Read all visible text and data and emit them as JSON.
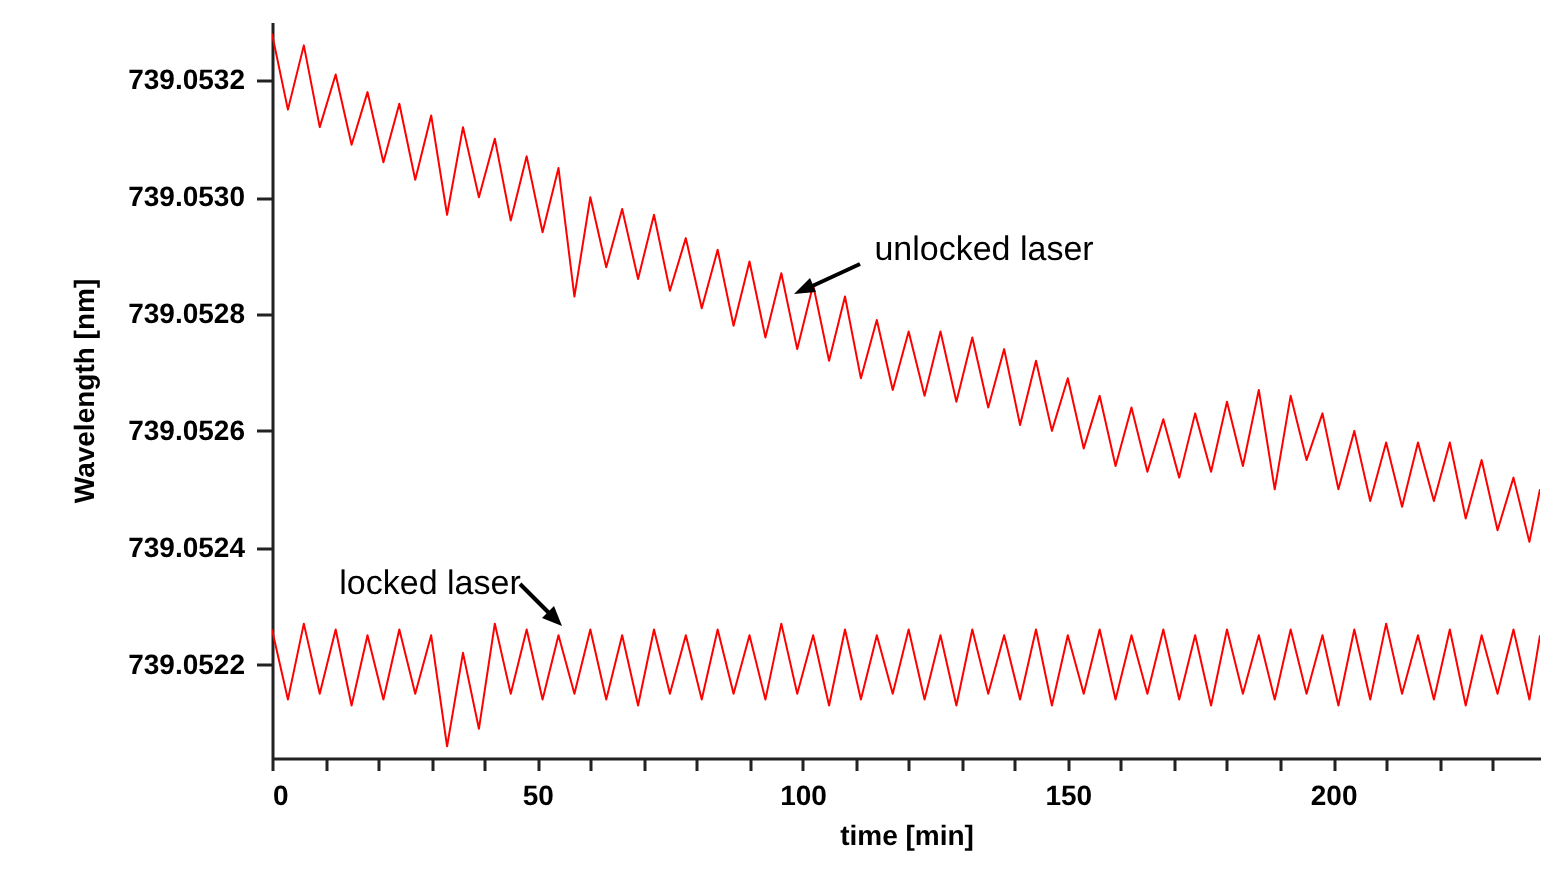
{
  "chart_data": {
    "type": "line",
    "xlabel": "time [min]",
    "ylabel": "Wavelength [nm]",
    "xlim": [
      0,
      239
    ],
    "ylim": [
      739.05204,
      739.0533
    ],
    "xticks": [
      0,
      {
        "value": 10,
        "label": null
      },
      {
        "value": 20,
        "label": null
      },
      {
        "value": 30,
        "label": null
      },
      {
        "value": 40,
        "label": null
      },
      50,
      {
        "value": 60,
        "label": null
      },
      {
        "value": 70,
        "label": null
      },
      {
        "value": 80,
        "label": null
      },
      {
        "value": 90,
        "label": null
      },
      100,
      {
        "value": 110,
        "label": null
      },
      {
        "value": 120,
        "label": null
      },
      {
        "value": 130,
        "label": null
      },
      {
        "value": 140,
        "label": null
      },
      150,
      {
        "value": 160,
        "label": null
      },
      {
        "value": 170,
        "label": null
      },
      {
        "value": 180,
        "label": null
      },
      {
        "value": 190,
        "label": null
      },
      200,
      {
        "value": 210,
        "label": null
      },
      {
        "value": 220,
        "label": null
      },
      {
        "value": 230,
        "label": null
      }
    ],
    "yticks": [
      {
        "value": 739.0522,
        "label": "739.0522"
      },
      {
        "value": 739.0524,
        "label": "739.0524"
      },
      {
        "value": 739.0526,
        "label": "739.0526"
      },
      {
        "value": 739.0528,
        "label": "739.0528"
      },
      {
        "value": 739.053,
        "label": "739.0530"
      },
      {
        "value": 739.0532,
        "label": "739.0532"
      }
    ],
    "x": [
      0,
      3,
      6,
      9,
      12,
      15,
      18,
      21,
      24,
      27,
      30,
      33,
      36,
      39,
      42,
      45,
      48,
      51,
      54,
      57,
      60,
      63,
      66,
      69,
      72,
      75,
      78,
      81,
      84,
      87,
      90,
      93,
      96,
      99,
      102,
      105,
      108,
      111,
      114,
      117,
      120,
      123,
      126,
      129,
      132,
      135,
      138,
      141,
      144,
      147,
      150,
      153,
      156,
      159,
      162,
      165,
      168,
      171,
      174,
      177,
      180,
      183,
      186,
      189,
      192,
      195,
      198,
      201,
      204,
      207,
      210,
      213,
      216,
      219,
      222,
      225,
      228,
      231,
      234,
      237,
      239
    ],
    "series": [
      {
        "name": "unlocked laser",
        "color": "#ff0000",
        "values": [
          739.05328,
          739.05315,
          739.05326,
          739.05312,
          739.05321,
          739.05309,
          739.05318,
          739.05306,
          739.05316,
          739.05303,
          739.05314,
          739.05297,
          739.05312,
          739.053,
          739.0531,
          739.05296,
          739.05307,
          739.05294,
          739.05305,
          739.05283,
          739.053,
          739.05288,
          739.05298,
          739.05286,
          739.05297,
          739.05284,
          739.05293,
          739.05281,
          739.05291,
          739.05278,
          739.05289,
          739.05276,
          739.05287,
          739.05274,
          739.05285,
          739.05272,
          739.05283,
          739.05269,
          739.05279,
          739.05267,
          739.05277,
          739.05266,
          739.05277,
          739.05265,
          739.05276,
          739.05264,
          739.05274,
          739.05261,
          739.05272,
          739.0526,
          739.05269,
          739.05257,
          739.05266,
          739.05254,
          739.05264,
          739.05253,
          739.05262,
          739.05252,
          739.05263,
          739.05253,
          739.05265,
          739.05254,
          739.05267,
          739.0525,
          739.05266,
          739.05255,
          739.05263,
          739.0525,
          739.0526,
          739.05248,
          739.05258,
          739.05247,
          739.05258,
          739.05248,
          739.05258,
          739.05245,
          739.05255,
          739.05243,
          739.05252,
          739.05241,
          739.0525
        ]
      },
      {
        "name": "locked laser",
        "color": "#ff0000",
        "values": [
          739.05226,
          739.05214,
          739.05227,
          739.05215,
          739.05226,
          739.05213,
          739.05225,
          739.05214,
          739.05226,
          739.05215,
          739.05225,
          739.05206,
          739.05222,
          739.05209,
          739.05227,
          739.05215,
          739.05226,
          739.05214,
          739.05225,
          739.05215,
          739.05226,
          739.05214,
          739.05225,
          739.05213,
          739.05226,
          739.05215,
          739.05225,
          739.05214,
          739.05226,
          739.05215,
          739.05225,
          739.05214,
          739.05227,
          739.05215,
          739.05225,
          739.05213,
          739.05226,
          739.05214,
          739.05225,
          739.05215,
          739.05226,
          739.05214,
          739.05225,
          739.05213,
          739.05226,
          739.05215,
          739.05225,
          739.05214,
          739.05226,
          739.05213,
          739.05225,
          739.05215,
          739.05226,
          739.05214,
          739.05225,
          739.05215,
          739.05226,
          739.05214,
          739.05225,
          739.05213,
          739.05226,
          739.05215,
          739.05225,
          739.05214,
          739.05226,
          739.05215,
          739.05225,
          739.05213,
          739.05226,
          739.05214,
          739.05227,
          739.05215,
          739.05225,
          739.05214,
          739.05226,
          739.05213,
          739.05225,
          739.05215,
          739.05226,
          739.05214,
          739.05225
        ]
      }
    ]
  }
}
